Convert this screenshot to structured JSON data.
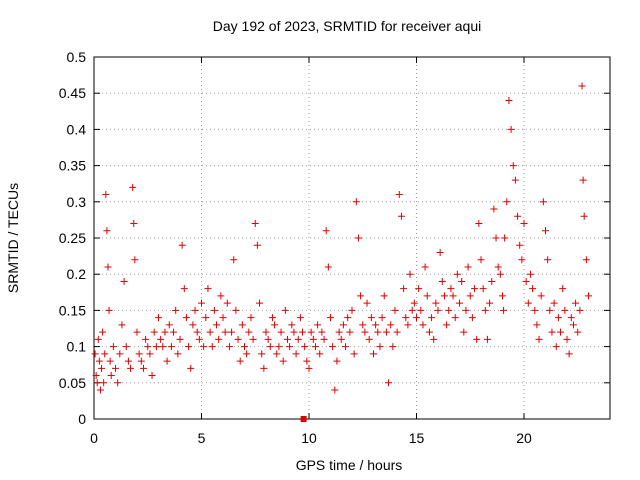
{
  "chart_data": {
    "type": "scatter",
    "title": "Day 192 of 2023, SRMTID for receiver aqui",
    "xlabel": "GPS time / hours",
    "ylabel": "SRMTID / TECUs",
    "xlim": [
      0,
      24
    ],
    "ylim": [
      0,
      0.5
    ],
    "xticks": [
      0,
      5,
      10,
      15,
      20
    ],
    "yticks": [
      0,
      0.05,
      0.1,
      0.15,
      0.2,
      0.25,
      0.3,
      0.35,
      0.4,
      0.45,
      0.5
    ],
    "grid": true,
    "marker": "+",
    "color": "#e00000",
    "series": [
      {
        "name": "SRMTID",
        "x": [
          0.05,
          0.1,
          0.15,
          0.2,
          0.25,
          0.3,
          0.35,
          0.4,
          0.45,
          0.5,
          0.55,
          0.6,
          0.65,
          0.7,
          0.75,
          0.8,
          0.9,
          1.0,
          1.1,
          1.2,
          1.3,
          1.4,
          1.5,
          1.6,
          1.7,
          1.8,
          1.85,
          1.9,
          2.0,
          2.1,
          2.2,
          2.3,
          2.4,
          2.5,
          2.6,
          2.7,
          2.8,
          2.9,
          3.0,
          3.1,
          3.2,
          3.3,
          3.4,
          3.5,
          3.6,
          3.7,
          3.8,
          3.9,
          4.0,
          4.1,
          4.2,
          4.3,
          4.4,
          4.5,
          4.6,
          4.7,
          4.8,
          4.9,
          5.0,
          5.1,
          5.2,
          5.3,
          5.4,
          5.5,
          5.6,
          5.7,
          5.8,
          5.9,
          6.0,
          6.1,
          6.2,
          6.3,
          6.4,
          6.5,
          6.6,
          6.7,
          6.8,
          6.9,
          7.0,
          7.1,
          7.2,
          7.3,
          7.4,
          7.5,
          7.6,
          7.7,
          7.8,
          7.9,
          8.0,
          8.1,
          8.2,
          8.3,
          8.4,
          8.5,
          8.6,
          8.7,
          8.8,
          8.9,
          9.0,
          9.1,
          9.2,
          9.3,
          9.4,
          9.5,
          9.6,
          9.7,
          9.8,
          9.9,
          10.0,
          10.1,
          10.2,
          10.3,
          10.4,
          10.5,
          10.6,
          10.7,
          10.8,
          10.9,
          11.0,
          11.1,
          11.2,
          11.3,
          11.4,
          11.5,
          11.6,
          11.7,
          11.8,
          11.9,
          12.0,
          12.1,
          12.2,
          12.3,
          12.4,
          12.5,
          12.6,
          12.7,
          12.8,
          12.9,
          13.0,
          13.1,
          13.2,
          13.3,
          13.4,
          13.5,
          13.6,
          13.7,
          13.8,
          13.9,
          14.0,
          14.1,
          14.2,
          14.3,
          14.4,
          14.5,
          14.6,
          14.7,
          14.8,
          14.9,
          15.0,
          15.1,
          15.2,
          15.3,
          15.4,
          15.5,
          15.6,
          15.7,
          15.8,
          15.9,
          16.0,
          16.1,
          16.2,
          16.3,
          16.4,
          16.5,
          16.6,
          16.7,
          16.8,
          16.9,
          17.0,
          17.1,
          17.2,
          17.3,
          17.4,
          17.5,
          17.6,
          17.7,
          17.8,
          17.9,
          18.0,
          18.1,
          18.2,
          18.3,
          18.4,
          18.5,
          18.6,
          18.7,
          18.8,
          18.9,
          19.0,
          19.05,
          19.1,
          19.2,
          19.3,
          19.4,
          19.5,
          19.6,
          19.7,
          19.8,
          19.9,
          20.0,
          20.1,
          20.2,
          20.3,
          20.4,
          20.5,
          20.6,
          20.7,
          20.8,
          20.9,
          21.0,
          21.1,
          21.2,
          21.3,
          21.4,
          21.5,
          21.6,
          21.7,
          21.8,
          21.9,
          22.0,
          22.1,
          22.2,
          22.3,
          22.4,
          22.5,
          22.6,
          22.7,
          22.75,
          22.8,
          22.9,
          23.0
        ],
        "y": [
          0.09,
          0.06,
          0.05,
          0.11,
          0.08,
          0.04,
          0.07,
          0.12,
          0.05,
          0.09,
          0.31,
          0.26,
          0.21,
          0.15,
          0.08,
          0.06,
          0.1,
          0.07,
          0.05,
          0.09,
          0.13,
          0.19,
          0.1,
          0.08,
          0.07,
          0.32,
          0.27,
          0.22,
          0.12,
          0.09,
          0.08,
          0.07,
          0.11,
          0.1,
          0.09,
          0.06,
          0.12,
          0.1,
          0.14,
          0.11,
          0.1,
          0.12,
          0.08,
          0.13,
          0.1,
          0.12,
          0.15,
          0.09,
          0.11,
          0.24,
          0.18,
          0.14,
          0.1,
          0.07,
          0.13,
          0.15,
          0.12,
          0.11,
          0.16,
          0.1,
          0.14,
          0.18,
          0.12,
          0.1,
          0.15,
          0.13,
          0.11,
          0.17,
          0.14,
          0.12,
          0.16,
          0.1,
          0.12,
          0.22,
          0.15,
          0.11,
          0.08,
          0.13,
          0.1,
          0.09,
          0.12,
          0.14,
          0.11,
          0.27,
          0.24,
          0.16,
          0.09,
          0.07,
          0.12,
          0.11,
          0.1,
          0.14,
          0.13,
          0.09,
          0.1,
          0.12,
          0.08,
          0.15,
          0.11,
          0.1,
          0.13,
          0.12,
          0.09,
          0.11,
          0.14,
          0.12,
          0.1,
          0.08,
          0.07,
          0.12,
          0.11,
          0.1,
          0.13,
          0.09,
          0.12,
          0.11,
          0.26,
          0.21,
          0.14,
          0.1,
          0.04,
          0.08,
          0.12,
          0.11,
          0.13,
          0.1,
          0.14,
          0.12,
          0.15,
          0.09,
          0.3,
          0.25,
          0.17,
          0.13,
          0.12,
          0.16,
          0.11,
          0.14,
          0.09,
          0.13,
          0.12,
          0.1,
          0.14,
          0.17,
          0.12,
          0.05,
          0.13,
          0.1,
          0.15,
          0.12,
          0.31,
          0.28,
          0.18,
          0.14,
          0.13,
          0.2,
          0.15,
          0.16,
          0.14,
          0.18,
          0.15,
          0.13,
          0.21,
          0.17,
          0.12,
          0.14,
          0.11,
          0.16,
          0.15,
          0.23,
          0.19,
          0.17,
          0.13,
          0.15,
          0.18,
          0.17,
          0.14,
          0.2,
          0.16,
          0.19,
          0.12,
          0.15,
          0.21,
          0.17,
          0.14,
          0.18,
          0.11,
          0.27,
          0.22,
          0.18,
          0.15,
          0.11,
          0.16,
          0.19,
          0.29,
          0.25,
          0.21,
          0.2,
          0.17,
          0.15,
          0.25,
          0.3,
          0.44,
          0.4,
          0.35,
          0.33,
          0.28,
          0.24,
          0.22,
          0.27,
          0.19,
          0.16,
          0.2,
          0.18,
          0.15,
          0.13,
          0.11,
          0.17,
          0.3,
          0.26,
          0.22,
          0.15,
          0.12,
          0.16,
          0.1,
          0.14,
          0.12,
          0.18,
          0.15,
          0.11,
          0.09,
          0.14,
          0.13,
          0.16,
          0.12,
          0.15,
          0.46,
          0.33,
          0.28,
          0.22,
          0.17
        ]
      }
    ],
    "markers": [
      {
        "x": 9.75,
        "y": 0.0,
        "shape": "square"
      }
    ]
  }
}
